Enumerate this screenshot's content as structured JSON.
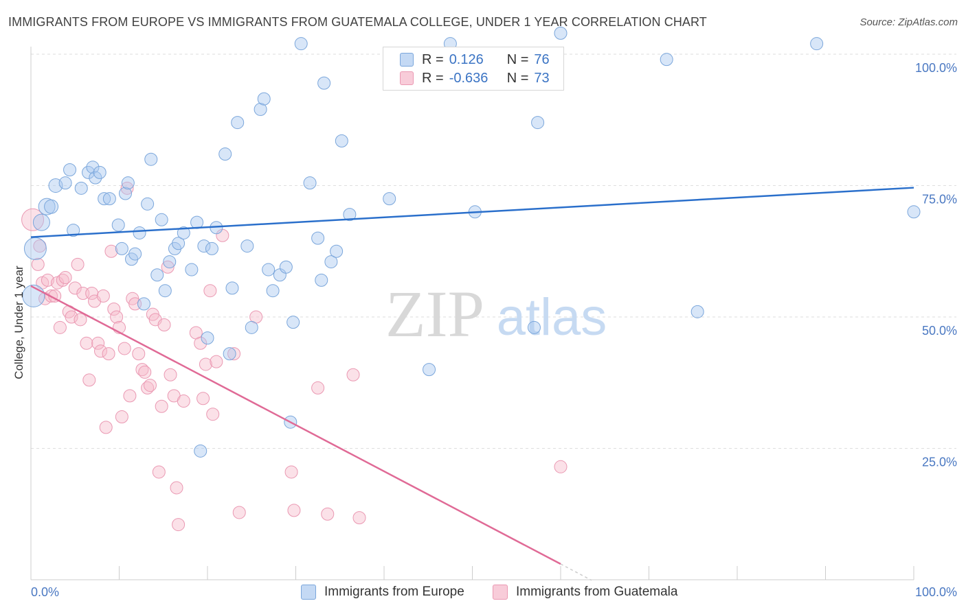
{
  "title": "IMMIGRANTS FROM EUROPE VS IMMIGRANTS FROM GUATEMALA COLLEGE, UNDER 1 YEAR CORRELATION CHART",
  "source": "Source: ZipAtlas.com",
  "watermark": {
    "zip": "ZIP",
    "atlas": "atlas"
  },
  "legend": {
    "europe": {
      "r_label": "R =",
      "r_value": "0.126",
      "n_label": "N =",
      "n_value": "76"
    },
    "guatemala": {
      "r_label": "R =",
      "r_value": "-0.636",
      "n_label": "N =",
      "n_value": "73"
    }
  },
  "bottom_legend": {
    "europe": "Immigrants from Europe",
    "guatemala": "Immigrants from Guatemala"
  },
  "colors": {
    "europe_fill": "#a8c8ef",
    "europe_stroke": "#7aa6db",
    "europe_line": "#2a6fcb",
    "guatemala_fill": "#f6bccd",
    "guatemala_stroke": "#ea98b2",
    "guatemala_line": "#e06a96",
    "tick_label": "#4a78c2",
    "grid": "#dedede"
  },
  "chart_data": {
    "type": "scatter",
    "title": "IMMIGRANTS FROM EUROPE VS IMMIGRANTS FROM GUATEMALA COLLEGE, UNDER 1 YEAR CORRELATION CHART",
    "xlabel": "",
    "ylabel": "College, Under 1 year",
    "xlim": [
      0,
      100
    ],
    "ylim": [
      0,
      104
    ],
    "x_tick_labels": [
      "0.0%",
      "100.0%"
    ],
    "y_ticks": [
      25,
      50,
      75,
      100
    ],
    "y_tick_labels": [
      "25.0%",
      "50.0%",
      "75.0%",
      "100.0%"
    ],
    "grid": true,
    "legend_position": "top-center",
    "series": [
      {
        "name": "Immigrants from Europe",
        "r": 0.126,
        "n": 76,
        "trend": {
          "x": [
            0,
            100
          ],
          "y": [
            65.2,
            74.6
          ]
        },
        "points": [
          [
            0.3,
            54,
            16
          ],
          [
            0.5,
            63,
            16
          ],
          [
            1.2,
            68,
            12
          ],
          [
            1.8,
            71,
            12
          ],
          [
            2.3,
            71,
            10
          ],
          [
            2.8,
            75,
            10
          ],
          [
            3.9,
            75.5,
            9
          ],
          [
            4.4,
            78,
            9
          ],
          [
            4.8,
            66.5,
            9
          ],
          [
            5.7,
            74.5,
            9
          ],
          [
            6.5,
            77.5,
            9
          ],
          [
            7.0,
            78.5,
            9
          ],
          [
            7.3,
            76.5,
            9
          ],
          [
            7.8,
            77.5,
            9
          ],
          [
            8.3,
            72.5,
            9
          ],
          [
            8.9,
            72.5,
            9
          ],
          [
            9.9,
            67.5,
            9
          ],
          [
            10.3,
            63,
            9
          ],
          [
            10.7,
            73.5,
            9
          ],
          [
            11.0,
            75.5,
            9
          ],
          [
            11.4,
            61,
            9
          ],
          [
            11.8,
            62,
            9
          ],
          [
            12.3,
            66,
            9
          ],
          [
            12.8,
            52.5,
            9
          ],
          [
            13.2,
            71.5,
            9
          ],
          [
            13.6,
            80,
            9
          ],
          [
            14.3,
            58,
            9
          ],
          [
            14.8,
            68.5,
            9
          ],
          [
            15.2,
            55,
            9
          ],
          [
            15.7,
            60.5,
            9
          ],
          [
            16.3,
            63,
            9
          ],
          [
            16.7,
            64,
            9
          ],
          [
            17.3,
            66,
            9
          ],
          [
            18.2,
            59,
            9
          ],
          [
            18.8,
            68,
            9
          ],
          [
            19.2,
            24.5,
            9
          ],
          [
            19.6,
            63.5,
            9
          ],
          [
            20.0,
            46,
            9
          ],
          [
            20.5,
            63,
            9
          ],
          [
            21.0,
            67,
            9
          ],
          [
            22.0,
            81,
            9
          ],
          [
            22.5,
            43,
            9
          ],
          [
            22.8,
            55.5,
            9
          ],
          [
            23.4,
            87,
            9
          ],
          [
            24.5,
            63.5,
            9
          ],
          [
            25.0,
            48,
            9
          ],
          [
            26.0,
            89.5,
            9
          ],
          [
            26.4,
            91.5,
            9
          ],
          [
            26.9,
            59,
            9
          ],
          [
            27.4,
            55,
            9
          ],
          [
            28.2,
            58,
            9
          ],
          [
            28.9,
            59.5,
            9
          ],
          [
            29.4,
            30,
            9
          ],
          [
            29.7,
            49,
            9
          ],
          [
            30.6,
            102,
            9
          ],
          [
            31.6,
            75.5,
            9
          ],
          [
            32.5,
            65,
            9
          ],
          [
            32.9,
            57,
            9
          ],
          [
            33.2,
            94.5,
            9
          ],
          [
            34.0,
            60.5,
            9
          ],
          [
            34.6,
            62.5,
            9
          ],
          [
            35.2,
            83.5,
            9
          ],
          [
            36.1,
            69.5,
            9
          ],
          [
            40.6,
            72.5,
            9
          ],
          [
            45.1,
            40,
            9
          ],
          [
            47.5,
            102,
            9
          ],
          [
            50.3,
            70,
            9
          ],
          [
            57.0,
            48,
            9
          ],
          [
            57.4,
            87,
            9
          ],
          [
            60.0,
            104,
            9
          ],
          [
            72.0,
            99,
            9
          ],
          [
            75.5,
            51,
            9
          ],
          [
            89.0,
            102,
            9
          ],
          [
            100.0,
            70,
            9
          ]
        ]
      },
      {
        "name": "Immigrants from Guatemala",
        "r": -0.636,
        "n": 73,
        "trend": {
          "x": [
            0,
            60.0
          ],
          "y": [
            55.9,
            3.0
          ]
        },
        "trend_dashed": {
          "x": [
            60.0,
            63.5
          ],
          "y": [
            3.0,
            -0.1
          ]
        },
        "points": [
          [
            0.2,
            68.5,
            16
          ],
          [
            0.8,
            60,
            9
          ],
          [
            1.0,
            63.5,
            9
          ],
          [
            1.3,
            56.5,
            9
          ],
          [
            1.6,
            53.5,
            9
          ],
          [
            1.9,
            57,
            9
          ],
          [
            2.3,
            54,
            9
          ],
          [
            2.7,
            54,
            9
          ],
          [
            3.0,
            56.5,
            9
          ],
          [
            3.3,
            48,
            9
          ],
          [
            3.6,
            57,
            9
          ],
          [
            3.9,
            57.5,
            9
          ],
          [
            4.3,
            51,
            9
          ],
          [
            4.6,
            50,
            9
          ],
          [
            5.0,
            55.5,
            9
          ],
          [
            5.3,
            60,
            9
          ],
          [
            5.6,
            49.5,
            9
          ],
          [
            5.9,
            54.5,
            9
          ],
          [
            6.3,
            45,
            9
          ],
          [
            6.6,
            38,
            9
          ],
          [
            6.9,
            54.5,
            9
          ],
          [
            7.2,
            53,
            9
          ],
          [
            7.6,
            45,
            9
          ],
          [
            7.9,
            43.5,
            9
          ],
          [
            8.2,
            54,
            9
          ],
          [
            8.5,
            29,
            9
          ],
          [
            8.8,
            43,
            9
          ],
          [
            9.1,
            62.5,
            9
          ],
          [
            9.4,
            51.5,
            9
          ],
          [
            9.7,
            50,
            9
          ],
          [
            10.0,
            48,
            9
          ],
          [
            10.3,
            31,
            9
          ],
          [
            10.6,
            44,
            9
          ],
          [
            10.9,
            74.5,
            9
          ],
          [
            11.2,
            35,
            9
          ],
          [
            11.5,
            53.5,
            9
          ],
          [
            11.8,
            52.5,
            9
          ],
          [
            12.2,
            43,
            9
          ],
          [
            12.6,
            40,
            9
          ],
          [
            12.9,
            39.5,
            9
          ],
          [
            13.2,
            36.5,
            9
          ],
          [
            13.5,
            37,
            9
          ],
          [
            13.8,
            50.5,
            9
          ],
          [
            14.1,
            49.5,
            9
          ],
          [
            14.5,
            20.5,
            9
          ],
          [
            14.8,
            33,
            9
          ],
          [
            15.1,
            48.5,
            9
          ],
          [
            15.5,
            59.5,
            9
          ],
          [
            15.8,
            39,
            9
          ],
          [
            16.2,
            35,
            9
          ],
          [
            16.5,
            17.5,
            9
          ],
          [
            16.7,
            10.5,
            9
          ],
          [
            17.3,
            34,
            9
          ],
          [
            18.7,
            47,
            9
          ],
          [
            19.2,
            45,
            9
          ],
          [
            19.5,
            34.5,
            9
          ],
          [
            19.8,
            41,
            9
          ],
          [
            20.3,
            55,
            9
          ],
          [
            20.6,
            31.5,
            9
          ],
          [
            21.0,
            41.5,
            9
          ],
          [
            21.7,
            65.5,
            9
          ],
          [
            23.0,
            43,
            9
          ],
          [
            23.6,
            12.8,
            9
          ],
          [
            25.5,
            50,
            9
          ],
          [
            29.5,
            20.5,
            9
          ],
          [
            29.8,
            13.2,
            9
          ],
          [
            32.5,
            36.5,
            9
          ],
          [
            33.6,
            12.5,
            9
          ],
          [
            36.5,
            39,
            9
          ],
          [
            37.2,
            11.8,
            9
          ],
          [
            60.0,
            21.5,
            9
          ]
        ]
      }
    ]
  }
}
